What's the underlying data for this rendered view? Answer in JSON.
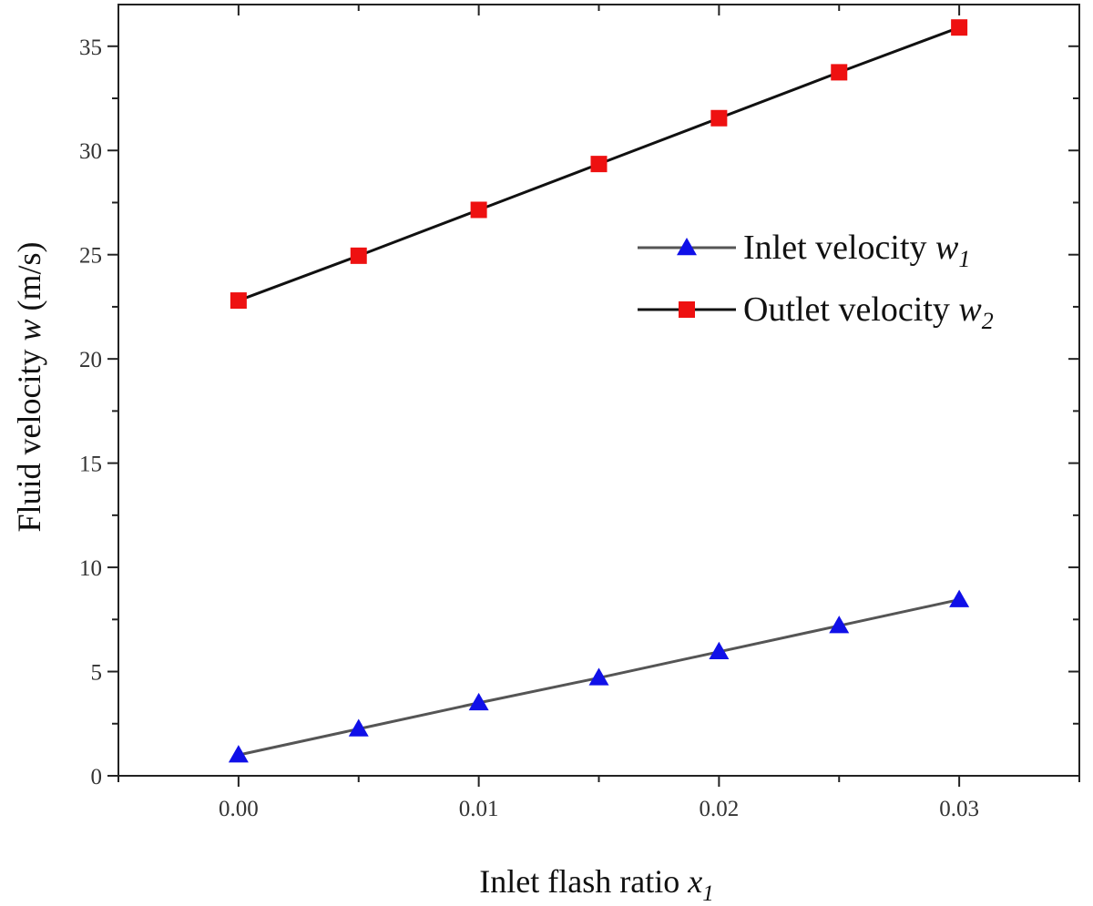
{
  "chart_data": {
    "type": "line",
    "x": [
      0.0,
      0.005,
      0.01,
      0.015,
      0.02,
      0.025,
      0.03
    ],
    "xlim": [
      -0.005,
      0.035
    ],
    "ylim": [
      0,
      37
    ],
    "x_ticks": [
      0.0,
      0.01,
      0.02,
      0.03
    ],
    "x_tick_labels": [
      "0.00",
      "0.01",
      "0.02",
      "0.03"
    ],
    "x_minor_ticks": [
      -0.005,
      0.005,
      0.015,
      0.025,
      0.035
    ],
    "y_ticks": [
      0,
      5,
      10,
      15,
      20,
      25,
      30,
      35
    ],
    "y_tick_labels": [
      "0",
      "5",
      "10",
      "15",
      "20",
      "25",
      "30",
      "35"
    ],
    "y_minor_ticks": [
      2.5,
      7.5,
      12.5,
      17.5,
      22.5,
      27.5,
      32.5
    ],
    "xlabel": {
      "text": "Inlet flash ratio ",
      "var": "x",
      "sub": "1"
    },
    "ylabel": {
      "text": "Fluid velocity ",
      "var": "w",
      "unit": " (m/s)"
    },
    "grid": false,
    "legend_position": "right",
    "series": [
      {
        "name": "Inlet velocity w1",
        "legend_text": "Inlet velocity ",
        "legend_var": "w",
        "legend_sub": "1",
        "marker": "triangle",
        "marker_color": "#1010e8",
        "line_color": "#555555",
        "values": [
          1.0,
          2.25,
          3.5,
          4.7,
          5.95,
          7.2,
          8.45
        ]
      },
      {
        "name": "Outlet velocity w2",
        "legend_text": "Outlet velocity ",
        "legend_var": "w",
        "legend_sub": "2",
        "marker": "square",
        "marker_color": "#ee1111",
        "line_color": "#111111",
        "values": [
          22.8,
          24.95,
          27.15,
          29.35,
          31.55,
          33.75,
          35.9
        ]
      }
    ]
  }
}
